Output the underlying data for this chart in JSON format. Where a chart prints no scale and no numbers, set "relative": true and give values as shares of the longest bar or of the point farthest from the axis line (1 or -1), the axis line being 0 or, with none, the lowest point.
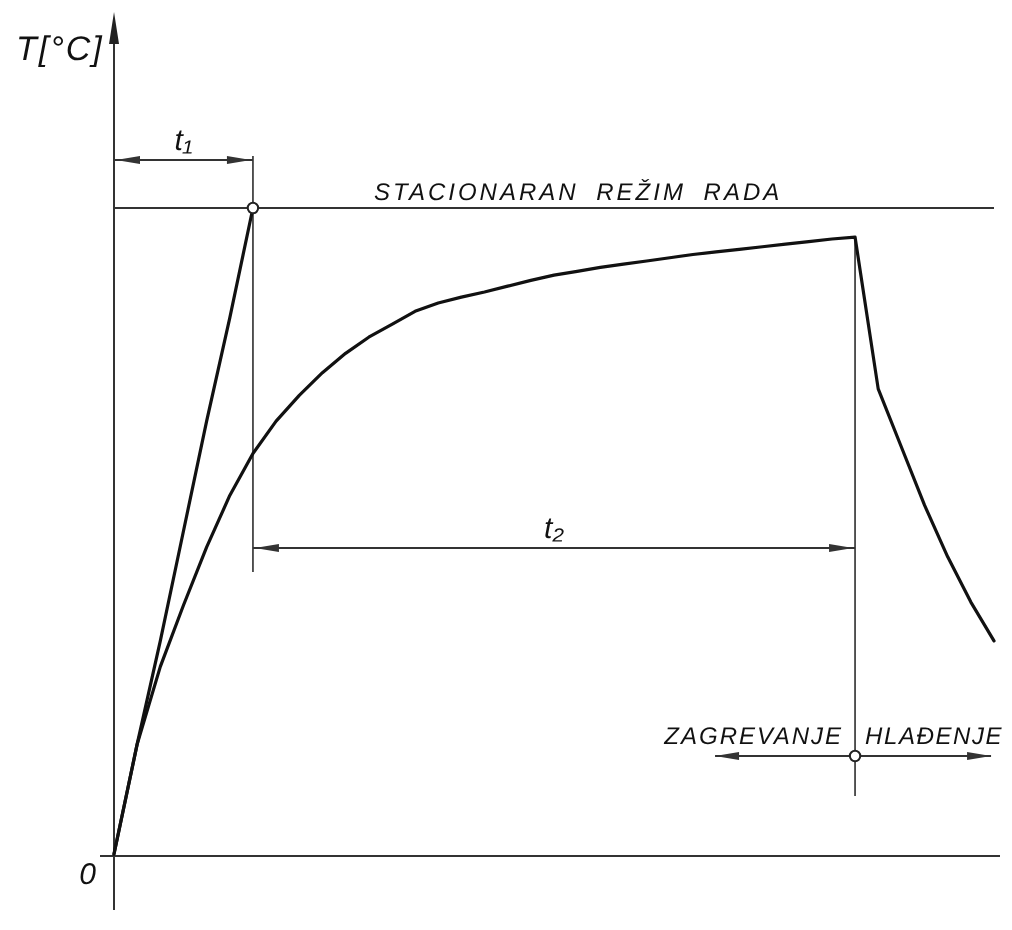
{
  "chart_data": {
    "type": "line",
    "relative": true,
    "ylabel": "T[°C]",
    "categories": [
      null,
      null,
      null,
      null,
      null,
      null,
      null,
      null,
      null,
      null,
      null,
      null,
      null,
      null,
      null,
      null,
      null,
      null,
      null,
      null,
      null,
      null,
      null,
      null,
      null,
      null,
      null,
      null,
      null,
      null,
      null,
      null,
      null,
      null,
      null,
      null,
      null,
      null,
      null
    ],
    "series": [
      {
        "color": "#111111",
        "values": [
          0,
          0.17,
          0.29,
          0.385,
          0.475,
          0.555,
          0.62,
          0.67,
          0.71,
          0.745,
          0.775,
          0.8,
          0.82,
          0.84,
          0.853,
          0.862,
          0.87,
          0.879,
          0.888,
          0.896,
          0.902,
          0.908,
          0.913,
          0.918,
          0.923,
          0.928,
          0.932,
          0.936,
          0.94,
          0.944,
          0.948,
          0.952,
          0.955,
          0.72,
          0.63,
          0.54,
          0.46,
          0.39,
          0.33
        ]
      },
      {
        "color": "#111111",
        "values": [
          0,
          0.17,
          0.33,
          0.5,
          0.67,
          0.83,
          1,
          null,
          null,
          null,
          null,
          null,
          null,
          null,
          null,
          null,
          null,
          null,
          null,
          null,
          null,
          null,
          null,
          null,
          null,
          null,
          null,
          null,
          null,
          null,
          null,
          null,
          null,
          null,
          null,
          null,
          null,
          null,
          null
        ]
      }
    ],
    "ref_lines": [
      {
        "axis": "y",
        "value": 1,
        "label": "STACIONARAN REŽIM RADA",
        "color": "#333333"
      }
    ],
    "annotations": [
      "0",
      "t₁",
      "t₂",
      "ZAGREVANJE",
      "HLAĐENJE"
    ]
  }
}
